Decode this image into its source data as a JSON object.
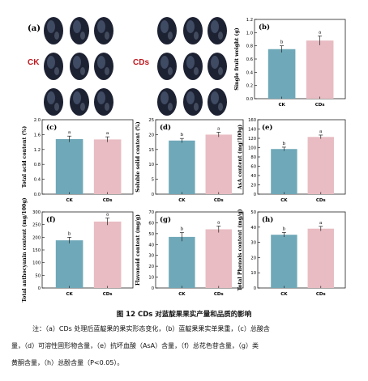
{
  "figure": {
    "caption": "图 12 CDs 对蓝靛果果实产量和品质的影响",
    "note_line1": "注：（a）CDs 处理后蓝靛果的果实形态变化，（b）蓝靛果果实单果重，（c）总酸含",
    "note_line2": "量，（d）可溶性固形物含量，（e）抗坏血酸（AsA）含量，（f）总花色苷含量，（g）类",
    "note_line3": "黄酮含量，（h）总酚含量（P<0.05）。"
  },
  "panel_a": {
    "label": "(a)",
    "groups": [
      "CK",
      "CDs"
    ]
  },
  "colors": {
    "CK": "#6fa8b8",
    "CDs": "#e8bcc2",
    "group_label": "#c0171e"
  },
  "chart_data": [
    {
      "id": "b",
      "type": "bar",
      "label": "(b)",
      "categories": [
        "CK",
        "CDs"
      ],
      "values": [
        0.75,
        0.88
      ],
      "errors": [
        0.05,
        0.07
      ],
      "letters": [
        "b",
        "a"
      ],
      "ylabel": "Single fruit weight (g)",
      "ylim": [
        0,
        1.2
      ],
      "yticks": [
        "0.0",
        "0.2",
        "0.4",
        "0.6",
        "0.8",
        "1.0",
        "1.2"
      ]
    },
    {
      "id": "c",
      "type": "bar",
      "label": "(c)",
      "categories": [
        "CK",
        "CDs"
      ],
      "values": [
        1.48,
        1.47
      ],
      "errors": [
        0.08,
        0.07
      ],
      "letters": [
        "a",
        "a"
      ],
      "ylabel": "Total acid content (%)",
      "ylim": [
        0,
        2.0
      ],
      "yticks": [
        "0.0",
        "0.4",
        "0.8",
        "1.2",
        "1.6",
        "2.0"
      ]
    },
    {
      "id": "d",
      "type": "bar",
      "label": "(d)",
      "categories": [
        "CK",
        "CDs"
      ],
      "values": [
        18,
        20
      ],
      "errors": [
        0.7,
        0.8
      ],
      "letters": [
        "b",
        "a"
      ],
      "ylabel": "Soluble solid content (%)",
      "ylim": [
        0,
        25
      ],
      "yticks": [
        "0",
        "5",
        "10",
        "15",
        "20",
        "25"
      ]
    },
    {
      "id": "e",
      "type": "bar",
      "label": "(e)",
      "categories": [
        "CK",
        "CDs"
      ],
      "values": [
        97,
        123
      ],
      "errors": [
        4,
        4
      ],
      "letters": [
        "b",
        "a"
      ],
      "ylabel": "AsA content (mg/100g)",
      "ylim": [
        0,
        160
      ],
      "yticks": [
        "0",
        "20",
        "40",
        "60",
        "80",
        "100",
        "120",
        "140",
        "160"
      ]
    },
    {
      "id": "f",
      "type": "bar",
      "label": "(f)",
      "categories": [
        "CK",
        "CDs"
      ],
      "values": [
        188,
        262
      ],
      "errors": [
        12,
        14
      ],
      "letters": [
        "b",
        "a"
      ],
      "ylabel": "Total anthocyanin content (mg/100g)",
      "ylim": [
        0,
        300
      ],
      "yticks": [
        "0",
        "50",
        "100",
        "150",
        "200",
        "250",
        "300"
      ]
    },
    {
      "id": "g",
      "type": "bar",
      "label": "(g)",
      "categories": [
        "CK",
        "CDs"
      ],
      "values": [
        47,
        54
      ],
      "errors": [
        4,
        3
      ],
      "letters": [
        "b",
        "a"
      ],
      "ylabel": "Flavonoid content (mg/g)",
      "ylim": [
        0,
        70
      ],
      "yticks": [
        "0",
        "10",
        "20",
        "30",
        "40",
        "50",
        "60",
        "70"
      ]
    },
    {
      "id": "h",
      "type": "bar",
      "label": "(h)",
      "categories": [
        "CK",
        "CDs"
      ],
      "values": [
        35,
        39
      ],
      "errors": [
        1.5,
        1.5
      ],
      "letters": [
        "b",
        "a"
      ],
      "ylabel": "Total Phenols content (mg/g)",
      "ylim": [
        0,
        50
      ],
      "yticks": [
        "0",
        "10",
        "20",
        "30",
        "40",
        "50"
      ]
    }
  ]
}
